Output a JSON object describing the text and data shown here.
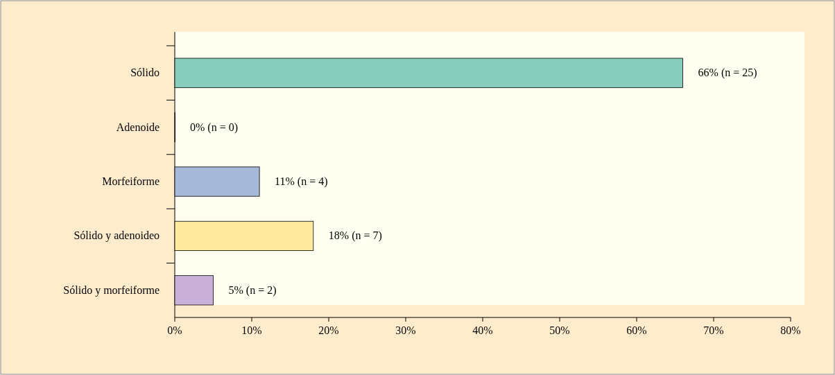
{
  "chart_data": {
    "type": "bar",
    "orientation": "horizontal",
    "categories": [
      "Sólido",
      "Adenoide",
      "Morfeiforme",
      "Sólido y adenoideo",
      "Sólido y morfeiforme"
    ],
    "values": [
      66,
      0,
      11,
      18,
      5
    ],
    "colors": [
      "#88ccbb",
      "#a03a2a",
      "#a8b8d8",
      "#ffeaa0",
      "#c8b0d8"
    ],
    "value_labels": [
      "66% (n = 25)",
      "0% (n = 0)",
      "11% (n = 4)",
      "18% (n = 7)",
      "5% (n = 2)"
    ],
    "xlim": [
      0,
      80
    ],
    "xticks": [
      {
        "value": 0,
        "label": "0%"
      },
      {
        "value": 10,
        "label": "10%"
      },
      {
        "value": 20,
        "label": "20%"
      },
      {
        "value": 30,
        "label": "30%"
      },
      {
        "value": 40,
        "label": "40%"
      },
      {
        "value": 50,
        "label": "50%"
      },
      {
        "value": 60,
        "label": "60%"
      },
      {
        "value": 70,
        "label": "70%"
      },
      {
        "value": 80,
        "label": "80%"
      }
    ],
    "stacked": false
  }
}
